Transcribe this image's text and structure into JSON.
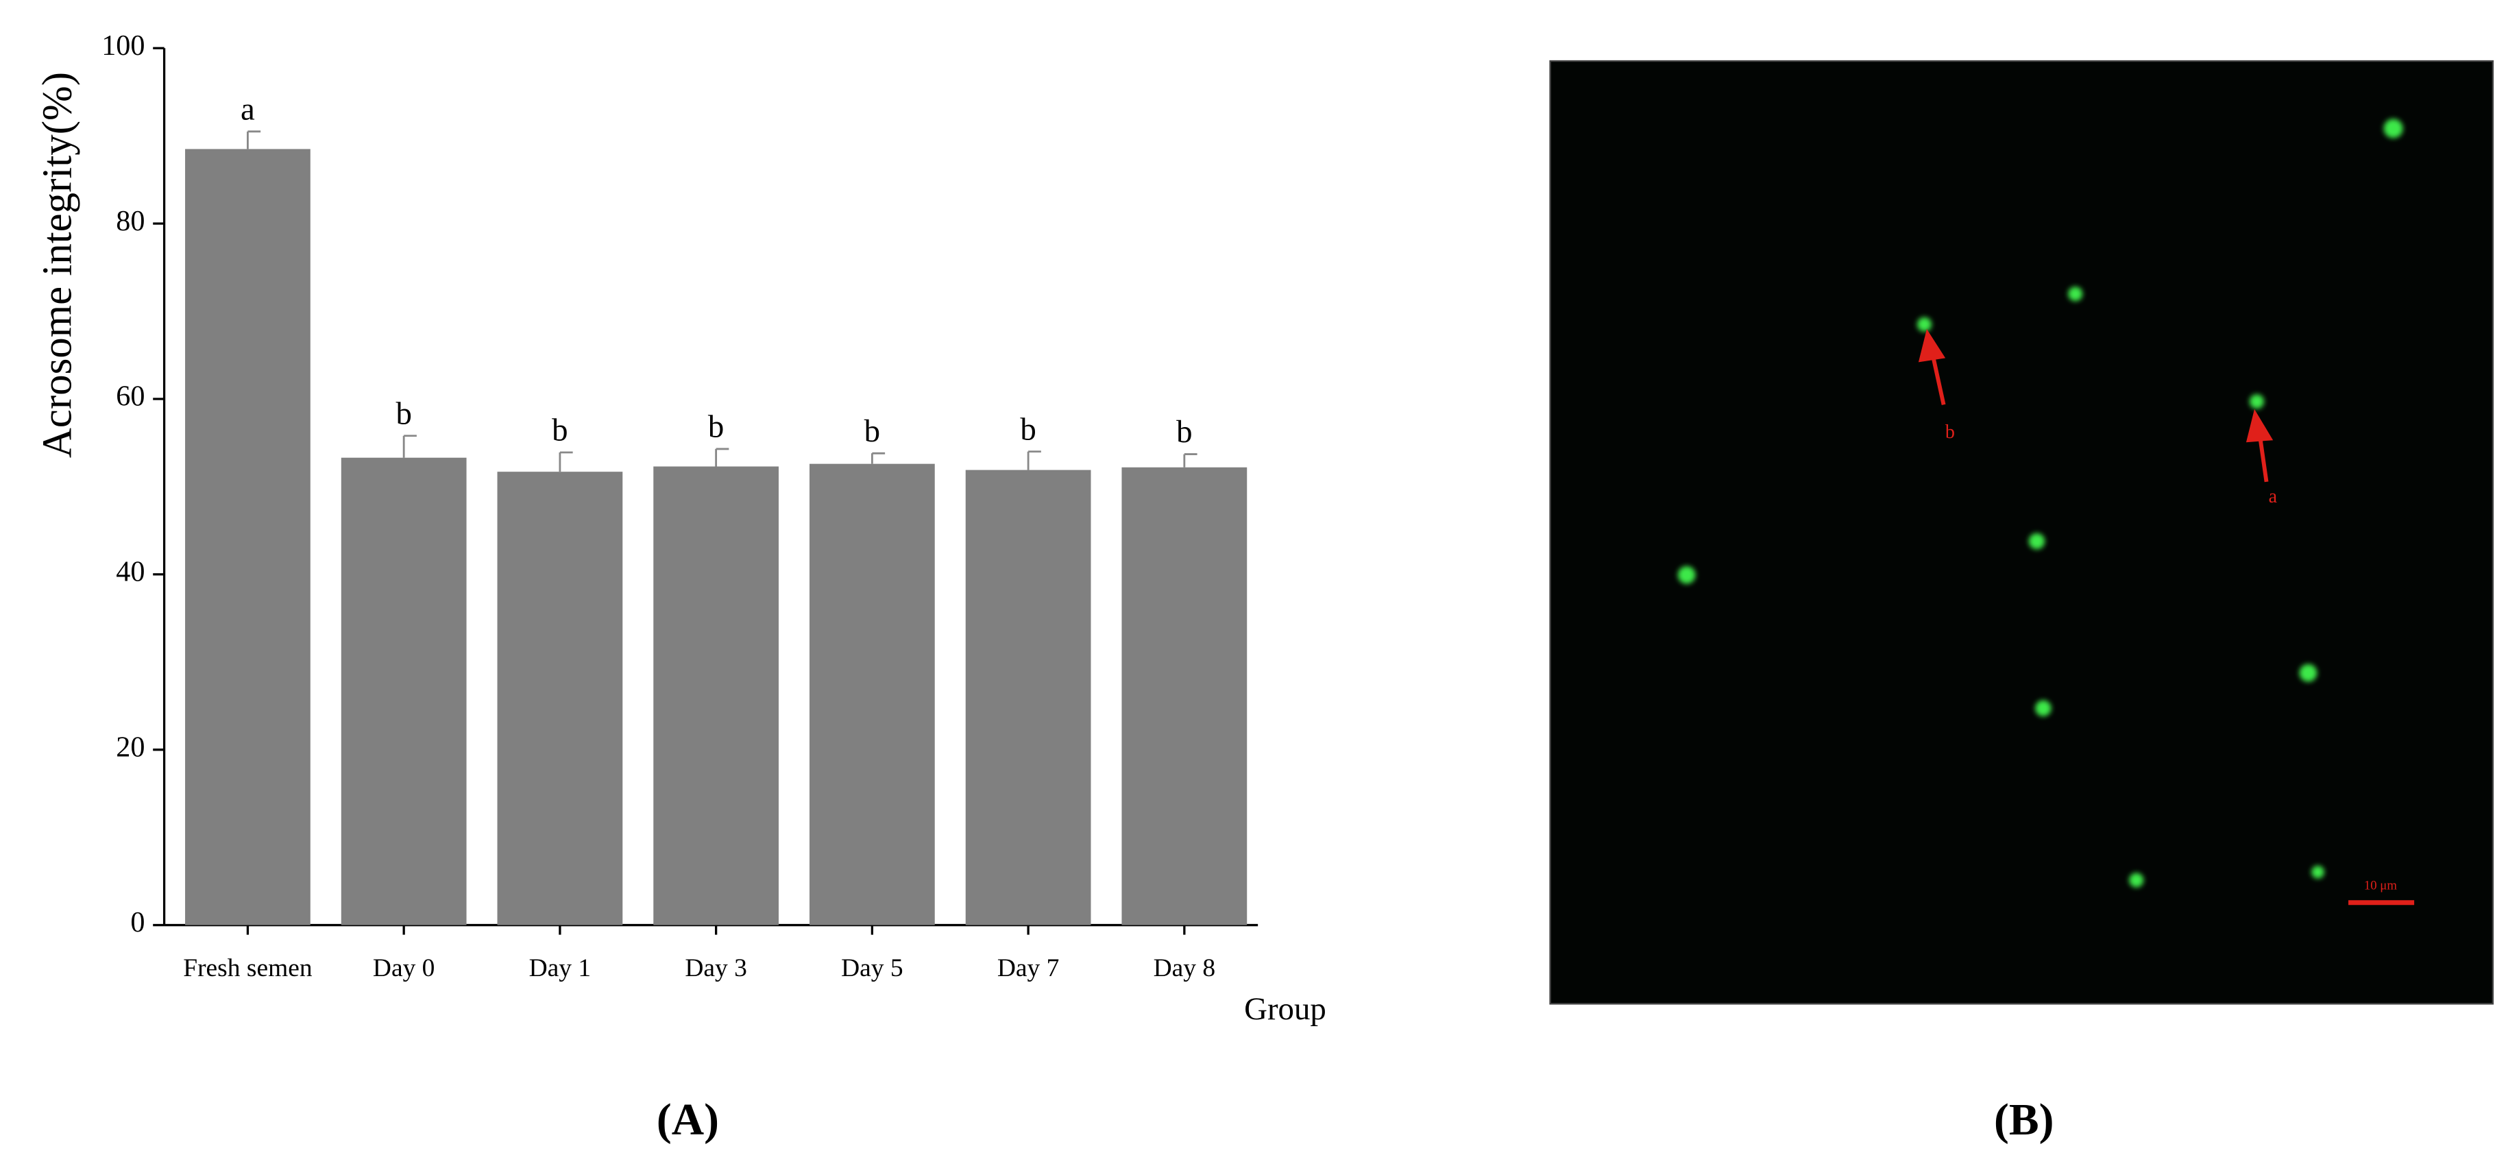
{
  "chart_data": {
    "type": "bar",
    "ylabel": "Acrosome integrity(%)",
    "xlabel": "Group",
    "categories": [
      "Fresh semen",
      "Day 0",
      "Day 1",
      "Day 3",
      "Day 5",
      "Day 7",
      "Day 8"
    ],
    "values": [
      88.5,
      53.3,
      51.7,
      52.3,
      52.6,
      51.9,
      52.2
    ],
    "errors": [
      2.0,
      2.5,
      2.2,
      2.0,
      1.2,
      2.1,
      1.5
    ],
    "significance_letters": [
      "a",
      "b",
      "b",
      "b",
      "b",
      "b",
      "b"
    ],
    "color": "#808080",
    "ylim": [
      0,
      100
    ],
    "yticks": [
      0,
      20,
      40,
      60,
      80,
      100
    ],
    "grid": false
  },
  "panels": {
    "left": "(A)",
    "right": "(B)"
  },
  "micrograph": {
    "arrow_a": "a",
    "arrow_b": "b",
    "scale_bar": "10 μm"
  }
}
